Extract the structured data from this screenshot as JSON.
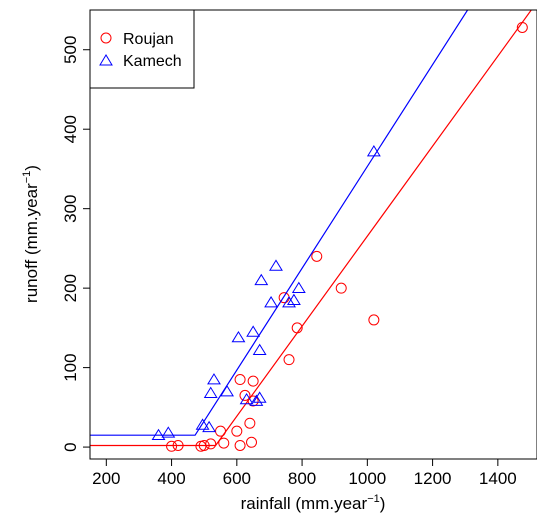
{
  "chart_data": {
    "type": "scatter",
    "xlabel": "rainfall (mm.year",
    "xlabel_sup": "−1",
    "xlabel_close": ")",
    "ylabel": "runoff (mm.year",
    "ylabel_sup": "−1",
    "ylabel_close": ")",
    "xlim": [
      150,
      1520
    ],
    "ylim": [
      -15,
      550
    ],
    "xticks": [
      200,
      400,
      600,
      800,
      1000,
      1200,
      1400
    ],
    "yticks": [
      0,
      100,
      200,
      300,
      400,
      500
    ],
    "grid": false,
    "legend_position": "top-left",
    "series": [
      {
        "name": "Roujan",
        "color": "#ff0000",
        "marker": "circle",
        "points": [
          [
            400,
            1
          ],
          [
            420,
            2
          ],
          [
            490,
            1
          ],
          [
            500,
            2
          ],
          [
            520,
            4
          ],
          [
            550,
            20
          ],
          [
            560,
            5
          ],
          [
            600,
            20
          ],
          [
            610,
            85
          ],
          [
            610,
            2
          ],
          [
            625,
            65
          ],
          [
            640,
            30
          ],
          [
            645,
            6
          ],
          [
            650,
            83
          ],
          [
            650,
            58
          ],
          [
            745,
            188
          ],
          [
            760,
            110
          ],
          [
            785,
            150
          ],
          [
            845,
            240
          ],
          [
            920,
            200
          ],
          [
            1020,
            160
          ],
          [
            1475,
            528
          ]
        ],
        "fit": [
          [
            150,
            2
          ],
          [
            535,
            2
          ],
          [
            1520,
            560
          ]
        ]
      },
      {
        "name": "Kamech",
        "color": "#0000ff",
        "marker": "triangle",
        "points": [
          [
            360,
            15
          ],
          [
            390,
            18
          ],
          [
            495,
            28
          ],
          [
            515,
            25
          ],
          [
            520,
            68
          ],
          [
            530,
            85
          ],
          [
            570,
            70
          ],
          [
            605,
            138
          ],
          [
            630,
            60
          ],
          [
            650,
            145
          ],
          [
            660,
            58
          ],
          [
            670,
            122
          ],
          [
            670,
            62
          ],
          [
            675,
            210
          ],
          [
            705,
            182
          ],
          [
            720,
            228
          ],
          [
            760,
            182
          ],
          [
            775,
            185
          ],
          [
            790,
            200
          ],
          [
            1020,
            372
          ]
        ],
        "fit": [
          [
            150,
            15
          ],
          [
            472,
            15
          ],
          [
            1320,
            558
          ]
        ]
      }
    ]
  }
}
